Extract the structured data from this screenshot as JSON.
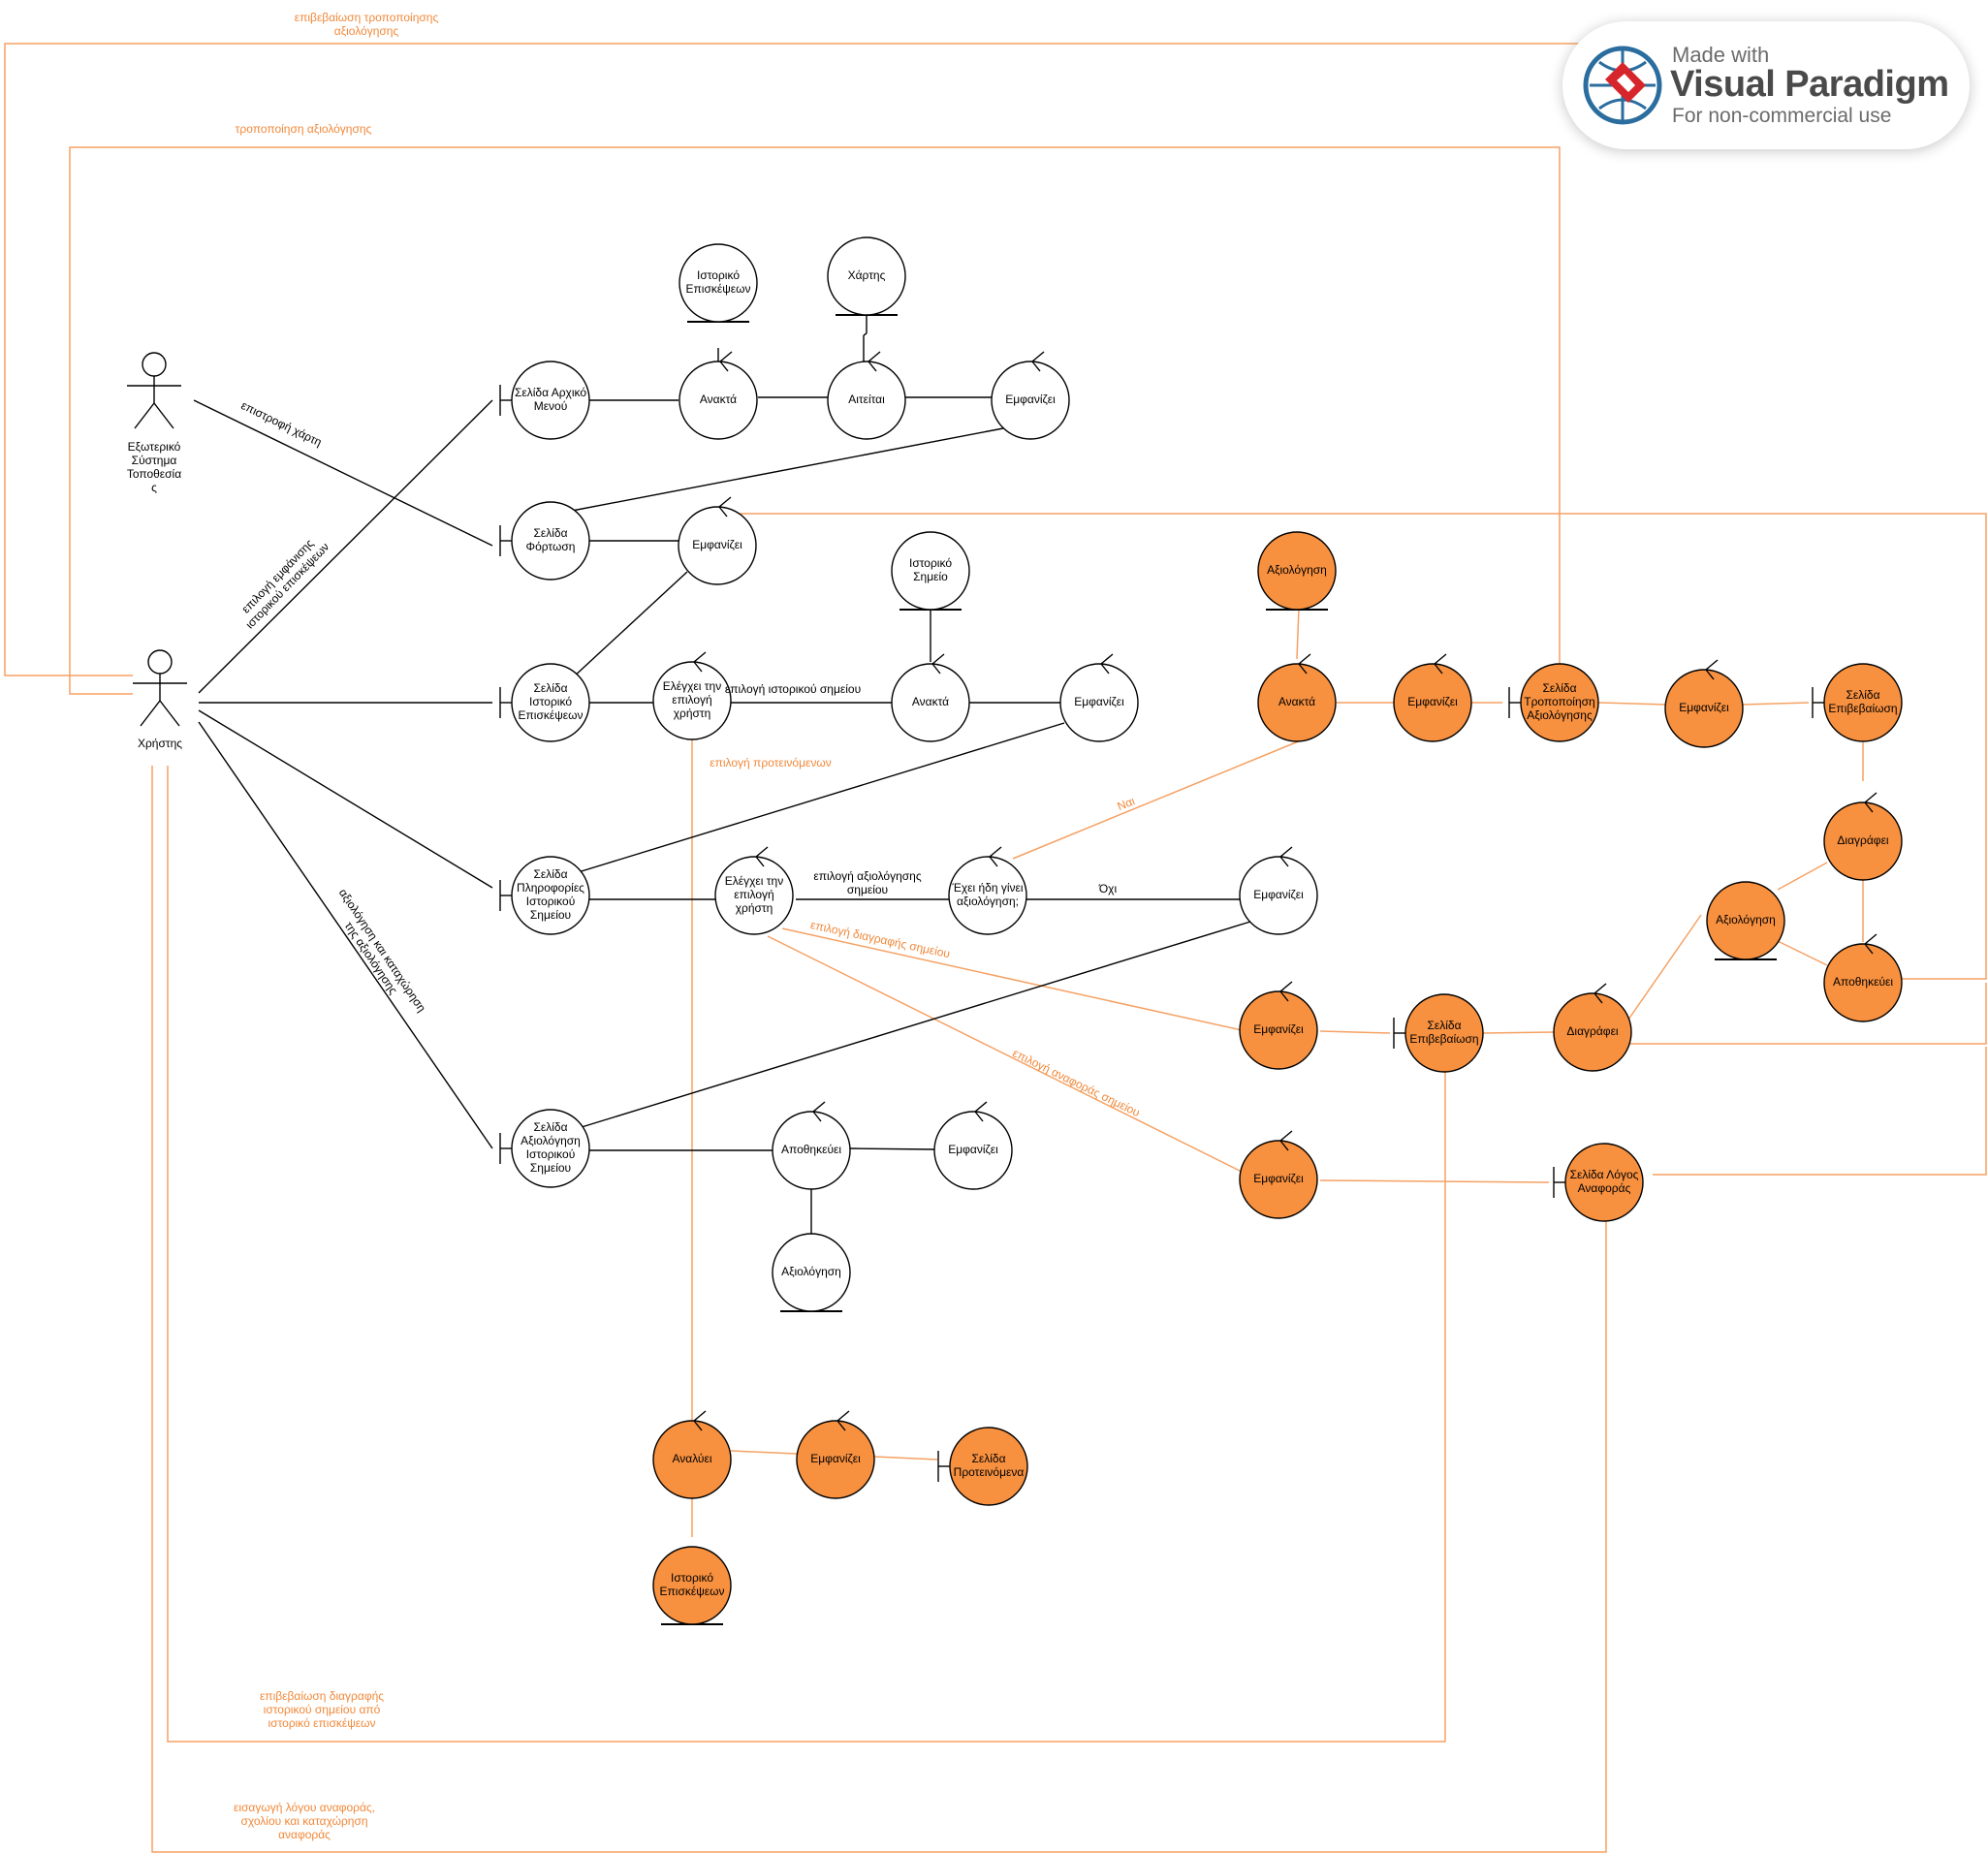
{
  "watermark": {
    "made_with": "Made with",
    "brand": "Visual Paradigm",
    "license": "For non-commercial use"
  },
  "colors": {
    "orange": "#f7903f",
    "line_orange": "#f5a163",
    "black": "#000000"
  },
  "actors": {
    "external_system": [
      "Εξωτερικό",
      "Σύστημα",
      "Τοποθεσία",
      "ς"
    ],
    "user": [
      "Χρήστης"
    ]
  },
  "nodes": {
    "n_home": [
      "Σελίδα Αρχικό",
      "Μενού"
    ],
    "n_hist1": [
      "Ιστορικό",
      "Επισκέψεων"
    ],
    "n_map": [
      "Χάρτης"
    ],
    "n_retrieve1": [
      "Ανακτά"
    ],
    "n_request": [
      "Αιτείται"
    ],
    "n_show1": [
      "Εμφανίζει"
    ],
    "n_loading": [
      "Σελίδα",
      "Φόρτωση"
    ],
    "n_show2": [
      "Εμφανίζει"
    ],
    "n_histpoint": [
      "Ιστορικό",
      "Σημείο"
    ],
    "n_histpage": [
      "Σελίδα",
      "Ιστορικό",
      "Επισκέψεων"
    ],
    "n_check1": [
      "Ελέγχει την",
      "επιλογή",
      "χρήστη"
    ],
    "n_retrieve2": [
      "Ανακτά"
    ],
    "n_show3": [
      "Εμφανίζει"
    ],
    "n_infopage": [
      "Σελίδα",
      "Πληροφορίες",
      "Ιστορικού",
      "Σημείου"
    ],
    "n_check2": [
      "Ελέγχει την",
      "επιλογή",
      "χρήστη"
    ],
    "n_already": [
      "Έχει ήδη γίνει",
      "αξιολόγηση;"
    ],
    "n_show4": [
      "Εμφανίζει"
    ],
    "n_ratepage": [
      "Σελίδα",
      "Αξιολόγηση",
      "Ιστορικού",
      "Σημείου"
    ],
    "n_save1": [
      "Αποθηκεύει"
    ],
    "n_show5": [
      "Εμφανίζει"
    ],
    "n_rating1": [
      "Αξιολόγηση"
    ],
    "o_rating2": [
      "Αξιολόγηση"
    ],
    "o_retrieve": [
      "Ανακτά"
    ],
    "o_show1": [
      "Εμφανίζει"
    ],
    "o_modpage": [
      "Σελίδα",
      "Τροποποίηση",
      "Αξιολόγησης"
    ],
    "o_show2": [
      "Εμφανίζει"
    ],
    "o_confpage1": [
      "Σελίδα",
      "Επιβεβαίωση"
    ],
    "o_delete1": [
      "Διαγράφει"
    ],
    "o_rating3": [
      "Αξιολόγηση"
    ],
    "o_save": [
      "Αποθηκεύει"
    ],
    "o_show3": [
      "Εμφανίζει"
    ],
    "o_confpage2": [
      "Σελίδα",
      "Επιβεβαίωση"
    ],
    "o_delete2": [
      "Διαγράφει"
    ],
    "o_show4": [
      "Εμφανίζει"
    ],
    "o_reportpage": [
      "Σελίδα Λόγος",
      "Αναφοράς"
    ],
    "o_analyze": [
      "Αναλύει"
    ],
    "o_show5": [
      "Εμφανίζει"
    ],
    "o_recpage": [
      "Σελίδα",
      "Προτεινόμενα"
    ],
    "o_hist": [
      "Ιστορικό",
      "Επισκέψεων"
    ]
  },
  "labels": {
    "l_confirm_mod": [
      "επιβεβαίωση τροποποίησης",
      "αξιολόγησης"
    ],
    "l_mod": [
      "τροποποίηση αξιολόγησης"
    ],
    "l_return_map": [
      "επιστροφή χάρτη"
    ],
    "l_show_history": [
      "επιλογή εμφάνισης",
      "ιστορικού επισκέψεων"
    ],
    "l_select_point": [
      "επιλογή ιστορικού σημείου"
    ],
    "l_select_recommended": [
      "επιλογή προτεινόμενων"
    ],
    "l_rate_point": [
      "επιλογή αξιολόγησης",
      "σημείου"
    ],
    "l_yes": [
      "Ναι"
    ],
    "l_no": [
      "Όχι"
    ],
    "l_delete_point": [
      "επιλογή διαγραφής σημείου"
    ],
    "l_report_point": [
      "επιλογή αναφοράς σημείου"
    ],
    "l_rate_store": [
      "αξιολόγηση και καταχώρηση",
      "της αξιολόγησης"
    ],
    "l_confirm_delete": [
      "επιβεβαίωση  διαγραφής",
      "ιστορικού σημείου από",
      "ιστορικό επισκέψεων"
    ],
    "l_report_entry": [
      "εισαγωγή λόγου αναφοράς,",
      "σχολίου και καταχώρηση",
      "αναφοράς"
    ]
  }
}
